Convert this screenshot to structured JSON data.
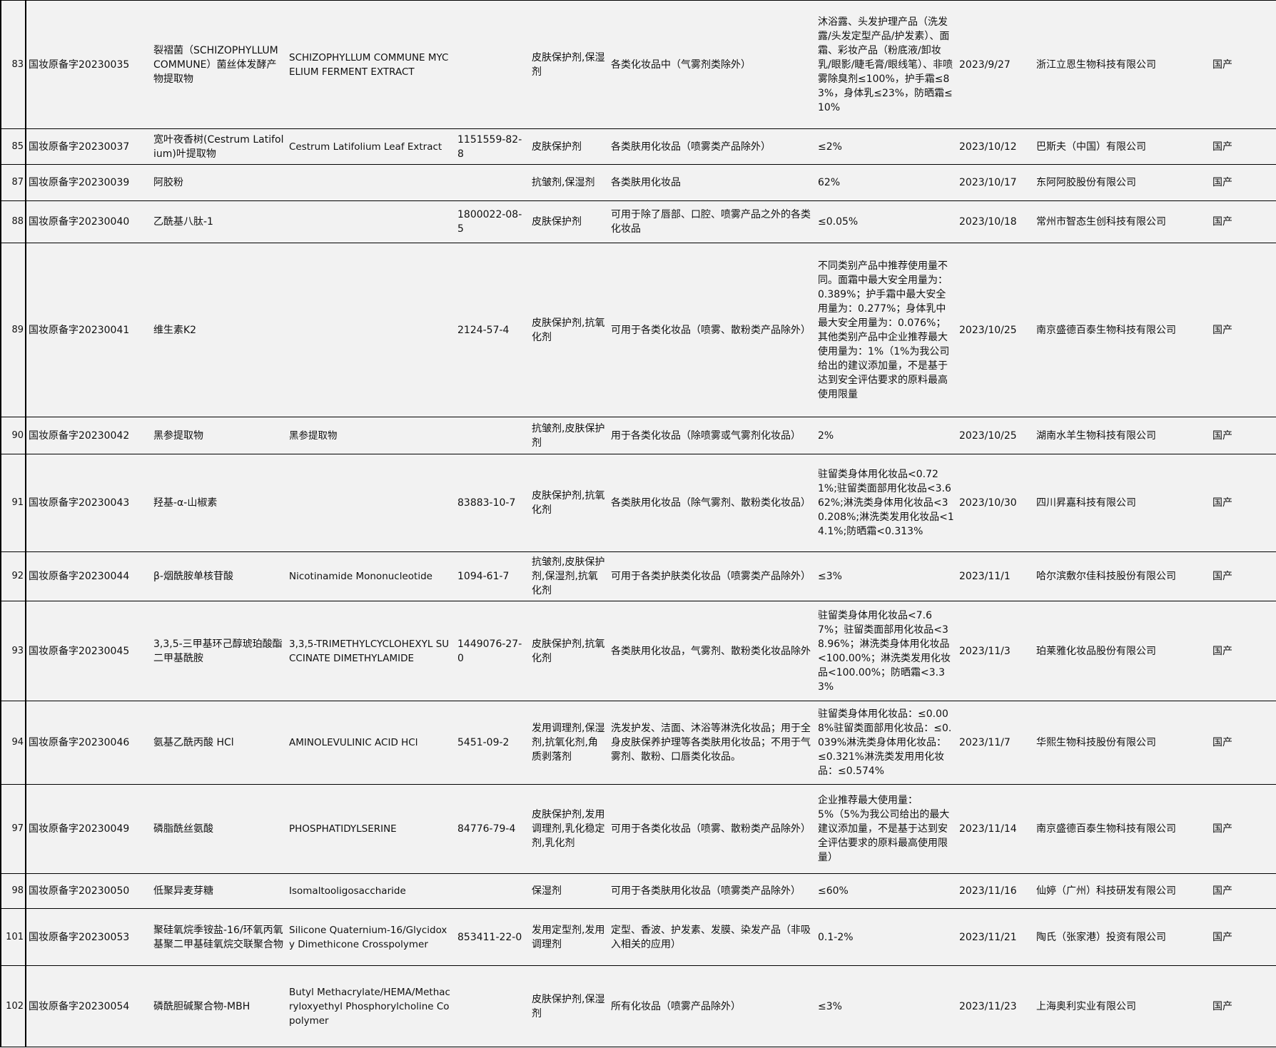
{
  "rows": [
    {
      "idx": "83",
      "code": "国妆原备字20230035",
      "cn": "裂褶菌（SCHIZOPHYLLUM COMMUNE）菌丝体发酵产物提取物",
      "en": "SCHIZOPHYLLUM COMMUNE MYCELIUM FERMENT EXTRACT",
      "cas": "",
      "func": "皮肤保护剂,保湿剂",
      "scope": "各类化妆品中（气雾剂类除外）",
      "limit": "沐浴露、头发护理产品（洗发露/头发定型产品/护发素）、面霜、彩妆产品（粉底液/卸妆乳/眼影/睫毛膏/眼线笔）、非喷雾除臭剂≤100%，护手霜≤83%，身体乳≤23%，防晒霜≤10%",
      "date": "2023/9/27",
      "company": "浙江立恩生物科技有限公司",
      "origin": "国产"
    },
    {
      "idx": "85",
      "code": "国妆原备字20230037",
      "cn": "宽叶夜香树(Cestrum Latifolium)叶提取物",
      "en": "Cestrum Latifolium Leaf  Extract",
      "cas": "1151559-82-8",
      "func": "皮肤保护剂",
      "scope": "各类肤用化妆品（喷雾类产品除外）",
      "limit": "≤2%",
      "date": "2023/10/12",
      "company": "巴斯夫（中国）有限公司",
      "origin": "国产"
    },
    {
      "idx": "87",
      "code": "国妆原备字20230039",
      "cn": "阿胶粉",
      "en": "",
      "cas": "",
      "func": "抗皱剂,保湿剂",
      "scope": "各类肤用化妆品",
      "limit": "62%",
      "date": "2023/10/17",
      "company": "东阿阿胶股份有限公司",
      "origin": "国产"
    },
    {
      "idx": "88",
      "code": "国妆原备字20230040",
      "cn": "乙酰基八肽-1",
      "en": "",
      "cas": "1800022-08-5",
      "func": "皮肤保护剂",
      "scope": "可用于除了唇部、口腔、喷雾产品之外的各类化妆品",
      "limit": "≤0.05%",
      "date": "2023/10/18",
      "company": "常州市智态生创科技有限公司",
      "origin": "国产"
    },
    {
      "idx": "89",
      "code": "国妆原备字20230041",
      "cn": "维生素K2",
      "en": "",
      "cas": "2124-57-4",
      "func": "皮肤保护剂,抗氧化剂",
      "scope": "可用于各类化妆品（喷雾、散粉类产品除外）",
      "limit": "不同类别产品中推荐使用量不同。面霜中最大安全用量为：0.389%；护手霜中最大安全用量为：0.277%；身体乳中最大安全用量为：0.076%；其他类别产品中企业推荐最大使用量为：1%（1%为我公司给出的建议添加量，不是基于达到安全评估要求的原料最高使用限量",
      "date": "2023/10/25",
      "company": "南京盛德百泰生物科技有限公司",
      "origin": "国产"
    },
    {
      "idx": "90",
      "code": "国妆原备字20230042",
      "cn": "黑参提取物",
      "en": "黑参提取物",
      "cas": "",
      "func": "抗皱剂,皮肤保护剂",
      "scope": "用于各类化妆品（除喷雾或气雾剂化妆品）",
      "limit": "2%",
      "date": "2023/10/25",
      "company": "湖南水羊生物科技有限公司",
      "origin": "国产"
    },
    {
      "idx": "91",
      "code": "国妆原备字20230043",
      "cn": "羟基-α-山椒素",
      "en": "",
      "cas": "83883-10-7",
      "func": "皮肤保护剂,抗氧化剂",
      "scope": "各类肤用化妆品（除气雾剂、散粉类化妆品）",
      "limit": "驻留类身体用化妆品<0.721%;驻留类面部用化妆品<3.662%;淋洗类身体用化妆品<30.208%;淋洗类发用化妆品<14.1%;防晒霜<0.313%",
      "date": "2023/10/30",
      "company": "四川昇嘉科技有限公司",
      "origin": "国产"
    },
    {
      "idx": "92",
      "code": "国妆原备字20230044",
      "cn": "β-烟酰胺单核苷酸",
      "en": "Nicotinamide Mononucleotide",
      "cas": "1094-61-7",
      "func": "抗皱剂,皮肤保护剂,保湿剂,抗氧化剂",
      "scope": "可用于各类护肤类化妆品（喷雾类产品除外）",
      "limit": "≤3%",
      "date": "2023/11/1",
      "company": "哈尔滨敷尔佳科技股份有限公司",
      "origin": "国产"
    },
    {
      "idx": "93",
      "code": "国妆原备字20230045",
      "cn": "3,3,5-三甲基环己醇琥珀酸酯二甲基酰胺",
      "en": "3,3,5-TRIMETHYLCYCLOHEXYL SUCCINATE DIMETHYLAMIDE",
      "cas": "1449076-27-0",
      "func": "皮肤保护剂,抗氧化剂",
      "scope": "各类肤用化妆品，气雾剂、散粉类化妆品除外",
      "limit": "驻留类身体用化妆品<7.67%；驻留类面部用化妆品<38.96%；淋洗类身体用化妆品<100.00%；淋洗类发用化妆品<100.00%；防晒霜<3.33%",
      "date": "2023/11/3",
      "company": "珀莱雅化妆品股份有限公司",
      "origin": "国产"
    },
    {
      "idx": "94",
      "code": "国妆原备字20230046",
      "cn": "氨基乙酰丙酸 HCl",
      "en": "AMINOLEVULINIC ACID HCl",
      "cas": "5451-09-2",
      "func": "发用调理剂,保湿剂,抗氧化剂,角质剥落剂",
      "scope": "洗发护发、洁面、沐浴等淋洗化妆品；用于全身皮肤保养护理等各类肤用化妆品；不用于气雾剂、散粉、口唇类化妆品。",
      "limit": "驻留类身体用化妆品：≤0.008%驻留类面部用化妆品：≤0.039%淋洗类身体用化妆品：≤0.321%淋洗类发用用化妆品：≤0.574%",
      "date": "2023/11/7",
      "company": "华熙生物科技股份有限公司",
      "origin": "国产"
    },
    {
      "idx": "97",
      "code": "国妆原备字20230049",
      "cn": "磷脂酰丝氨酸",
      "en": "PHOSPHATIDYLSERINE",
      "cas": "84776-79-4",
      "func": "皮肤保护剂,发用调理剂,乳化稳定剂,乳化剂",
      "scope": "可用于各类化妆品（喷雾、散粉类产品除外）",
      "limit": "企业推荐最大使用量：5%（5%为我公司给出的最大建议添加量，不是基于达到安全评估要求的原料最高使用限量）",
      "date": "2023/11/14",
      "company": "南京盛德百泰生物科技有限公司",
      "origin": "国产"
    },
    {
      "idx": "98",
      "code": "国妆原备字20230050",
      "cn": "低聚异麦芽糖",
      "en": "Isomaltooligosaccharide",
      "cas": "",
      "func": "保湿剂",
      "scope": "可用于各类肤用化妆品（喷雾类产品除外）",
      "limit": "≤60%",
      "date": "2023/11/16",
      "company": "仙婷（广州）科技研发有限公司",
      "origin": "国产"
    },
    {
      "idx": "101",
      "code": "国妆原备字20230053",
      "cn": "聚硅氧烷季铵盐-16/环氧丙氧基聚二甲基硅氧烷交联聚合物",
      "en": "Silicone Quaternium-16/Glycidoxy Dimethicone Crosspolymer",
      "cas": "853411-22-0",
      "func": "发用定型剂,发用调理剂",
      "scope": "定型、香波、护发素、发膜、染发产品（非吸入相关的应用）",
      "limit": "0.1-2%",
      "date": "2023/11/21",
      "company": "陶氏（张家港）投资有限公司",
      "origin": "国产"
    },
    {
      "idx": "102",
      "code": "国妆原备字20230054",
      "cn": "磷酰胆碱聚合物-MBH",
      "en": "Butyl Methacrylate/HEMA/Methacryloxyethyl Phosphorylcholine Copolymer",
      "cas": "",
      "func": "皮肤保护剂,保湿剂",
      "scope": "所有化妆品（喷雾产品除外）",
      "limit": "≤3%",
      "date": "2023/11/23",
      "company": "上海奥利实业有限公司",
      "origin": "国产"
    }
  ]
}
